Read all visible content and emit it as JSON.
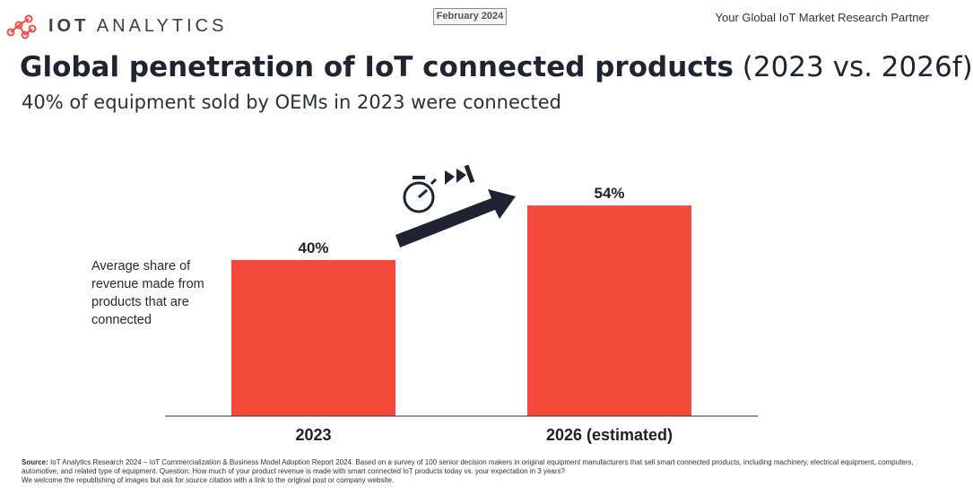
{
  "header": {
    "brand_bold": "IOT",
    "brand_light": "ANALYTICS",
    "date_badge": "February 2024",
    "tagline": "Your Global IoT Market Research Partner"
  },
  "title_bold": "Global penetration of IoT connected products",
  "title_light": "(2023 vs. 2026f)",
  "subtitle": "40% of equipment sold by OEMs in 2023 were connected",
  "side_label": "Average share of revenue made from products that are connected",
  "colors": {
    "bar": "#f44a3a",
    "arrow": "#1f2433",
    "brand_accent": "#e8524a",
    "text_dark": "#1f2430"
  },
  "icons": [
    "stopwatch-icon",
    "fast-forward-icon",
    "trend-arrow-icon"
  ],
  "chart_data": {
    "type": "bar",
    "categories": [
      "2023",
      "2026 (estimated)"
    ],
    "values": [
      40,
      54
    ],
    "data_labels": [
      "40%",
      "54%"
    ],
    "title": "",
    "xlabel": "",
    "ylabel": "Average share of revenue made from products that are connected",
    "ylim": [
      0,
      70
    ],
    "grid": false,
    "legend": "none"
  },
  "footer": {
    "source_label": "Source:",
    "source_text": "IoT Analytics Research 2024 – IoT Commercialization & Business Model Adoption Report 2024. Based on a survey of 100 senior decision makers in original equipment manufacturers that sell smart connected products, including machinery, electrical equipment, computers, automotive, and related type of equipment. Question: How much of your product revenue is made with smart connected IoT products today vs. your expectation in 3 years?",
    "republish_text": "We welcome the republishing of images but ask for source citation with a link to the original post or company website."
  }
}
